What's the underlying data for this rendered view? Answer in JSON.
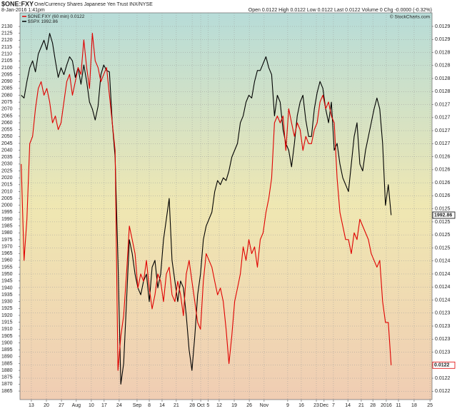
{
  "chart_data": {
    "type": "line",
    "title": "$ONE:FXY",
    "subtitle": "One/Currency Shares Japanese Yen Trust INX/NYSE",
    "date": "8-Jan-2016 1:41pm",
    "quote": "Open 0.0122  High 0.0122  Low 0.0122  Last 0.0122  Volume 0  Chg -0.0000 (-0.32%)",
    "copyright": "© StockCharts.com",
    "grid": true,
    "background": [
      "#b7dcd8",
      "#efe7b2",
      "#f0cdb3"
    ],
    "x": [
      -5,
      -3.6,
      -2.2,
      -0.8,
      0.6,
      2,
      3.4,
      4.8,
      6.2,
      7.6,
      9,
      10.4,
      11.8,
      13.2,
      14.6,
      16,
      17.4,
      18.8,
      20.2,
      21.6,
      23,
      24.4,
      25.8,
      27.2,
      28.6,
      30,
      31.4,
      32.8,
      34.2,
      35.6,
      37,
      38.4,
      39.8,
      41.2,
      42.6,
      44,
      45.4,
      46.8,
      48.2,
      49.6,
      51,
      52.4,
      53.8,
      55.2,
      56.6,
      58,
      59.4,
      60.8,
      62.2,
      63.6,
      65,
      66.4,
      67.8,
      69.2,
      70.6,
      72,
      73.4,
      74.8,
      76.2,
      77.6,
      79,
      80.4,
      81.8,
      83.2,
      84.6,
      86,
      87.4,
      88.8,
      90.2,
      91.6,
      93,
      94.4,
      95.8,
      97.2,
      98.6,
      100,
      101.4,
      102.8,
      104.2,
      105.6,
      107,
      108.4,
      109.8,
      111.2,
      112.6,
      114,
      115.4,
      116.8,
      118.2,
      119.6,
      121,
      122.4,
      123.8,
      125.2,
      126.6,
      128,
      129.4,
      130.8,
      132.2,
      133.6,
      135,
      136.4,
      137.8,
      139.2,
      140.6,
      142,
      143.4,
      144.8,
      146.2,
      147.6,
      149,
      150.4,
      151.8,
      153.2,
      154.6,
      156,
      157.4,
      158.8,
      160.2,
      161.6,
      163,
      164.4,
      165.8,
      167.2,
      168.6,
      170,
      171.4,
      172.8,
      174.2,
      175.6,
      177
    ],
    "xlim": [
      -5.6,
      197.1
    ],
    "xticks": [
      {
        "value": 0,
        "label": "13"
      },
      {
        "value": 7.4,
        "label": "20"
      },
      {
        "value": 14.8,
        "label": "27"
      },
      {
        "value": 22.1,
        "label": "Aug"
      },
      {
        "value": 29.5,
        "label": "10"
      },
      {
        "value": 35.8,
        "label": "17"
      },
      {
        "value": 43.2,
        "label": "24"
      },
      {
        "value": 52,
        "label": "Sep"
      },
      {
        "value": 58,
        "label": "8"
      },
      {
        "value": 64.3,
        "label": "14"
      },
      {
        "value": 71.3,
        "label": "21"
      },
      {
        "value": 79.1,
        "label": "28"
      },
      {
        "value": 83.3,
        "label": "Oct"
      },
      {
        "value": 86.9,
        "label": "5"
      },
      {
        "value": 92.4,
        "label": "12"
      },
      {
        "value": 99.8,
        "label": "19"
      },
      {
        "value": 107.2,
        "label": "26"
      },
      {
        "value": 114.5,
        "label": "Nov"
      },
      {
        "value": 126.1,
        "label": "9"
      },
      {
        "value": 132.8,
        "label": "16"
      },
      {
        "value": 140.2,
        "label": "23"
      },
      {
        "value": 144,
        "label": "Dec"
      },
      {
        "value": 148.6,
        "label": "7"
      },
      {
        "value": 155.7,
        "label": "14"
      },
      {
        "value": 162.3,
        "label": "21"
      },
      {
        "value": 168,
        "label": "28"
      },
      {
        "value": 174.6,
        "label": "2016"
      },
      {
        "value": 180.6,
        "label": "11"
      },
      {
        "value": 188.3,
        "label": "18"
      },
      {
        "value": 196.1,
        "label": "25"
      }
    ],
    "ylim": [
      1858.8,
      2139.9
    ],
    "yticks": [
      1865,
      1870,
      1875,
      1880,
      1885,
      1890,
      1895,
      1900,
      1905,
      1910,
      1915,
      1920,
      1925,
      1930,
      1935,
      1940,
      1945,
      1950,
      1955,
      1960,
      1965,
      1970,
      1975,
      1980,
      1985,
      1990,
      1995,
      2000,
      2005,
      2010,
      2015,
      2020,
      2025,
      2030,
      2035,
      2040,
      2045,
      2050,
      2055,
      2060,
      2065,
      2070,
      2075,
      2080,
      2085,
      2090,
      2095,
      2100,
      2105,
      2110,
      2115,
      2120,
      2125,
      2130
    ],
    "y2lim": [
      0.012179,
      0.012921
    ],
    "y2ticks": [
      {
        "value": 0.012895,
        "label": "0.0129"
      },
      {
        "value": 0.01287,
        "label": "0.0129"
      },
      {
        "value": 0.012845,
        "label": "0.0128"
      },
      {
        "value": 0.01282,
        "label": "0.0128"
      },
      {
        "value": 0.012795,
        "label": "0.0128"
      },
      {
        "value": 0.01277,
        "label": "0.0128"
      },
      {
        "value": 0.012745,
        "label": "0.0127"
      },
      {
        "value": 0.01272,
        "label": "0.0127"
      },
      {
        "value": 0.012695,
        "label": "0.0127"
      },
      {
        "value": 0.01267,
        "label": "0.0127"
      },
      {
        "value": 0.012645,
        "label": "0.0126"
      },
      {
        "value": 0.01262,
        "label": "0.0126"
      },
      {
        "value": 0.012595,
        "label": "0.0126"
      },
      {
        "value": 0.01257,
        "label": "0.0126"
      },
      {
        "value": 0.012545,
        "label": "0.0125"
      },
      {
        "value": 0.01252,
        "label": "0.0125"
      },
      {
        "value": 0.012495,
        "label": "0.0125"
      },
      {
        "value": 0.01247,
        "label": "0.0125"
      },
      {
        "value": 0.012445,
        "label": "0.0124"
      },
      {
        "value": 0.01242,
        "label": "0.0124"
      },
      {
        "value": 0.012395,
        "label": "0.0124"
      },
      {
        "value": 0.01237,
        "label": "0.0124"
      },
      {
        "value": 0.012345,
        "label": "0.0123"
      },
      {
        "value": 0.01232,
        "label": "0.0123"
      },
      {
        "value": 0.012295,
        "label": "0.0123"
      },
      {
        "value": 0.01227,
        "label": "0.0123"
      },
      {
        "value": 0.012245,
        "label": "0.0122"
      },
      {
        "value": 0.01222,
        "label": "0.0122"
      },
      {
        "value": 0.012195,
        "label": "0.0122"
      }
    ],
    "series": [
      {
        "name": "$SPX",
        "color": "#000000",
        "axis": "y",
        "values": [
          2080,
          2078,
          2090,
          2100,
          2105,
          2097,
          2110,
          2115,
          2120,
          2113,
          2125,
          2118,
          2105,
          2093,
          2100,
          2095,
          2102,
          2108,
          2105,
          2093,
          2100,
          2088,
          2102,
          2090,
          2075,
          2070,
          2062,
          2072,
          2095,
          2102,
          2098,
          2097,
          2060,
          2035,
          1960,
          1870,
          1885,
          1930,
          1975,
          1965,
          1950,
          1940,
          1935,
          1945,
          1950,
          1930,
          1955,
          1960,
          1940,
          1950,
          1975,
          1990,
          2005,
          1960,
          1945,
          1930,
          1945,
          1940,
          1920,
          1895,
          1880,
          1905,
          1935,
          1950,
          1975,
          1985,
          1990,
          1995,
          2010,
          2018,
          2015,
          2020,
          2018,
          2025,
          2035,
          2040,
          2045,
          2060,
          2065,
          2075,
          2080,
          2078,
          2090,
          2098,
          2098,
          2103,
          2108,
          2100,
          2095,
          2065,
          2080,
          2075,
          2055,
          2045,
          2040,
          2028,
          2045,
          2065,
          2075,
          2080,
          2062,
          2050,
          2050,
          2070,
          2082,
          2090,
          2085,
          2070,
          2060,
          2075,
          2040,
          2045,
          2030,
          2020,
          2015,
          2010,
          2030,
          2050,
          2060,
          2030,
          2025,
          2040,
          2050,
          2060,
          2070,
          2078,
          2070,
          2045,
          2000,
          2015,
          1992.86
        ]
      },
      {
        "name": "$ONE:FXY (60 min)",
        "color": "#e00000",
        "axis": "y2",
        "last_label": "0.0122",
        "values": [
          0.012631,
          0.012446,
          0.012525,
          0.01267,
          0.012684,
          0.012737,
          0.012776,
          0.012789,
          0.012763,
          0.012776,
          0.01275,
          0.01271,
          0.012723,
          0.012697,
          0.01271,
          0.01275,
          0.012789,
          0.012803,
          0.012763,
          0.012789,
          0.012816,
          0.012803,
          0.012869,
          0.012816,
          0.012776,
          0.012882,
          0.012829,
          0.012816,
          0.012789,
          0.012803,
          0.012816,
          0.012763,
          0.01271,
          0.012657,
          0.012235,
          0.012301,
          0.01234,
          0.01242,
          0.012512,
          0.012486,
          0.012459,
          0.012393,
          0.01242,
          0.012406,
          0.012446,
          0.012393,
          0.012353,
          0.01238,
          0.01242,
          0.012406,
          0.012367,
          0.01242,
          0.012433,
          0.01238,
          0.012367,
          0.012406,
          0.01238,
          0.01234,
          0.01242,
          0.012446,
          0.012406,
          0.012367,
          0.012327,
          0.012314,
          0.012406,
          0.012459,
          0.012446,
          0.012433,
          0.012406,
          0.01238,
          0.012393,
          0.012367,
          0.012314,
          0.012248,
          0.012301,
          0.012367,
          0.012393,
          0.01242,
          0.012472,
          0.012446,
          0.012486,
          0.012459,
          0.012472,
          0.012433,
          0.012486,
          0.012499,
          0.012538,
          0.012565,
          0.012604,
          0.01271,
          0.012723,
          0.01271,
          0.012723,
          0.012657,
          0.012737,
          0.01271,
          0.012684,
          0.01271,
          0.012697,
          0.012657,
          0.012684,
          0.01267,
          0.01267,
          0.012697,
          0.01271,
          0.01275,
          0.012763,
          0.012737,
          0.01275,
          0.012723,
          0.01271,
          0.012604,
          0.012538,
          0.012512,
          0.012486,
          0.012486,
          0.012459,
          0.012499,
          0.012486,
          0.012525,
          0.012512,
          0.012499,
          0.012486,
          0.012459,
          0.012446,
          0.012433,
          0.012446,
          0.012367,
          0.012327,
          0.012327,
          0.012245
        ]
      }
    ]
  }
}
